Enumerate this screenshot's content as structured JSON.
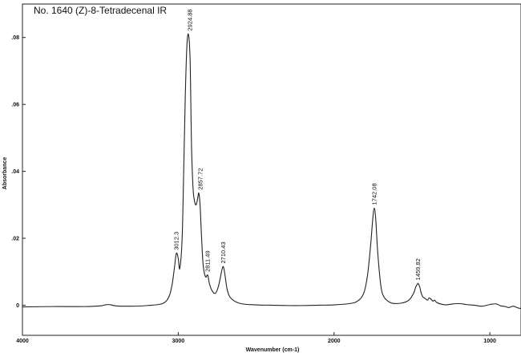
{
  "chart_data": {
    "type": "line",
    "title": "No. 1640 (Z)-8-Tetradecenal IR",
    "xlabel": "Wavenumber (cm-1)",
    "ylabel": "Absorbance",
    "xlim": [
      4000,
      800
    ],
    "ylim": [
      -0.009,
      0.09
    ],
    "x_ticks": [
      {
        "value": 4000,
        "label": "4000"
      },
      {
        "value": 3000,
        "label": "3000"
      },
      {
        "value": 2000,
        "label": "2000"
      },
      {
        "value": 1000,
        "label": "1000"
      }
    ],
    "y_ticks": [
      {
        "value": 0,
        "label": "0"
      },
      {
        "value": 0.02,
        "label": ".02"
      },
      {
        "value": 0.04,
        "label": ".04"
      },
      {
        "value": 0.06,
        "label": ".06"
      },
      {
        "value": 0.08,
        "label": ".08"
      }
    ],
    "grid": false,
    "legend": "none",
    "series": [
      {
        "x": [
          4000,
          3800,
          3600,
          3500,
          3470,
          3450,
          3430,
          3400,
          3300,
          3200,
          3100,
          3060,
          3040,
          3025,
          3012,
          3000,
          2990,
          2975,
          2965,
          2955,
          2945,
          2935,
          2925,
          2920,
          2915,
          2905,
          2895,
          2885,
          2875,
          2868,
          2860,
          2850,
          2840,
          2825,
          2811,
          2800,
          2785,
          2765,
          2750,
          2735,
          2720,
          2710,
          2700,
          2685,
          2660,
          2600,
          2500,
          2400,
          2300,
          2200,
          2100,
          2000,
          1900,
          1850,
          1810,
          1785,
          1765,
          1752,
          1742,
          1732,
          1720,
          1700,
          1680,
          1640,
          1600,
          1560,
          1520,
          1490,
          1475,
          1465,
          1460,
          1450,
          1440,
          1430,
          1415,
          1400,
          1390,
          1378,
          1365,
          1355,
          1340,
          1310,
          1280,
          1250,
          1200,
          1150,
          1100,
          1050,
          1000,
          960,
          930,
          900,
          880,
          850,
          820,
          800
        ],
        "y": [
          -0.0005,
          -0.0004,
          -0.0004,
          -0.0002,
          0.0001,
          0.0002,
          0.0001,
          -0.0002,
          -0.0003,
          -0.0001,
          0.0005,
          0.0025,
          0.006,
          0.011,
          0.0155,
          0.014,
          0.011,
          0.02,
          0.04,
          0.062,
          0.077,
          0.081,
          0.075,
          0.063,
          0.048,
          0.035,
          0.031,
          0.03,
          0.032,
          0.0335,
          0.03,
          0.02,
          0.012,
          0.0085,
          0.009,
          0.0065,
          0.0045,
          0.0035,
          0.0045,
          0.007,
          0.0105,
          0.0115,
          0.009,
          0.0045,
          0.002,
          0.0005,
          0.0001,
          0.0,
          -0.0001,
          -0.0001,
          0.0,
          0.0001,
          0.0005,
          0.0012,
          0.0035,
          0.009,
          0.018,
          0.0255,
          0.029,
          0.0255,
          0.016,
          0.006,
          0.0025,
          0.0008,
          0.0005,
          0.0007,
          0.0015,
          0.0035,
          0.0055,
          0.0063,
          0.0065,
          0.0055,
          0.0035,
          0.0025,
          0.002,
          0.0015,
          0.0022,
          0.0018,
          0.0012,
          0.0015,
          0.0008,
          0.0003,
          0.0001,
          0.0003,
          0.0005,
          0.0002,
          0.0,
          -0.0003,
          0.0002,
          0.0004,
          -0.0002,
          -0.0004,
          -0.0007,
          -0.0003,
          -0.0008,
          -0.001
        ]
      }
    ],
    "annotations": [
      {
        "label": "2924.88",
        "x": 2924.88,
        "y": 0.081
      },
      {
        "label": "2857.72",
        "x": 2857.72,
        "y": 0.0335
      },
      {
        "label": "3012.3",
        "x": 3012.3,
        "y": 0.0155
      },
      {
        "label": "2811.49",
        "x": 2811.49,
        "y": 0.009
      },
      {
        "label": "2710.43",
        "x": 2710.43,
        "y": 0.0115
      },
      {
        "label": "1742.08",
        "x": 1742.08,
        "y": 0.029
      },
      {
        "label": "1459.82",
        "x": 1459.82,
        "y": 0.0065
      }
    ]
  }
}
